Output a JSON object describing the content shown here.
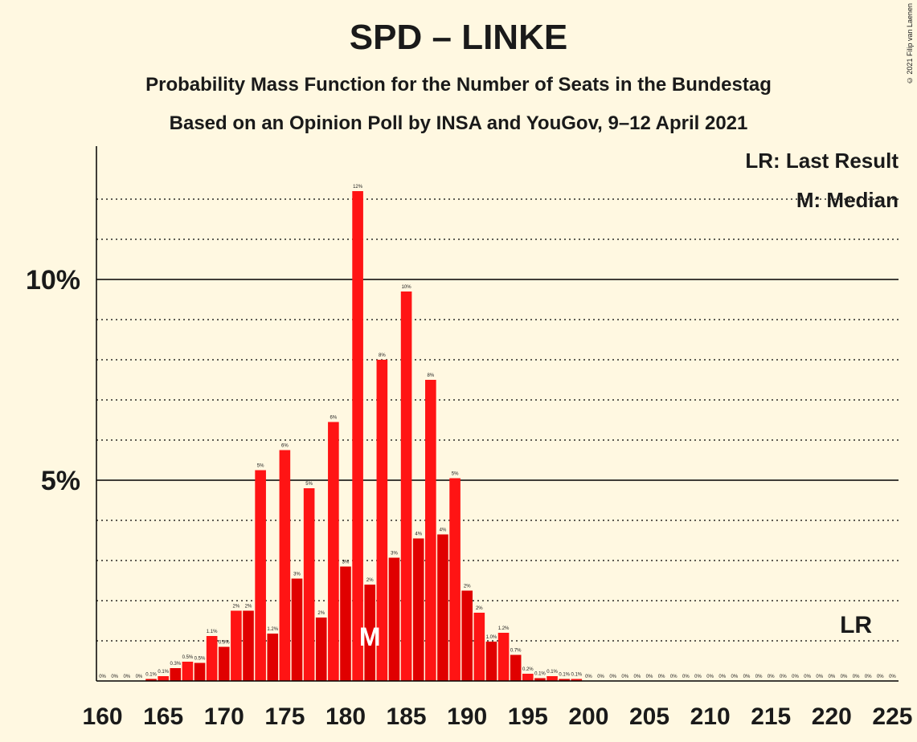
{
  "title": "SPD – LINKE",
  "subtitle1": "Probability Mass Function for the Number of Seats in the Bundestag",
  "subtitle2": "Based on an Opinion Poll by INSA and YouGov, 9–12 April 2021",
  "copyright": "© 2021 Filip van Laenen",
  "legend": {
    "lr": "LR: Last Result",
    "m": "M: Median"
  },
  "markers": {
    "median_label": "M",
    "median_seat": 182,
    "lr_label": "LR",
    "lr_seat": 222
  },
  "colors": {
    "background": "#FFF8E1",
    "bar_dark": "#E00000",
    "bar_light": "#FF1414",
    "text": "#1a1a1a"
  },
  "chart_data": {
    "type": "bar",
    "x": [
      160,
      161,
      162,
      163,
      164,
      165,
      166,
      167,
      168,
      169,
      170,
      171,
      172,
      173,
      174,
      175,
      176,
      177,
      178,
      179,
      180,
      181,
      182,
      183,
      184,
      185,
      186,
      187,
      188,
      189,
      190,
      191,
      192,
      193,
      194,
      195,
      196,
      197,
      198,
      199,
      200,
      201,
      202,
      203,
      204,
      205,
      206,
      207,
      208,
      209,
      210,
      211,
      212,
      213,
      214,
      215,
      216,
      217,
      218,
      219,
      220,
      221,
      222,
      223,
      224,
      225
    ],
    "values": [
      0,
      0,
      0,
      0,
      0.05,
      0.12,
      0.32,
      0.48,
      0.45,
      1.12,
      0.85,
      1.75,
      1.75,
      5.25,
      1.18,
      5.75,
      2.55,
      4.8,
      1.58,
      6.45,
      2.85,
      12.2,
      2.4,
      8.0,
      3.07,
      9.7,
      3.55,
      7.5,
      3.65,
      5.05,
      2.25,
      1.7,
      0.98,
      1.2,
      0.65,
      0.18,
      0.07,
      0.12,
      0.05,
      0.05,
      0,
      0,
      0,
      0,
      0,
      0,
      0,
      0,
      0,
      0,
      0,
      0,
      0,
      0,
      0,
      0,
      0,
      0,
      0,
      0,
      0,
      0,
      0,
      0,
      0,
      0
    ],
    "labels": [
      "0%",
      "0%",
      "0%",
      "0%",
      "0.1%",
      "0.1%",
      "0.3%",
      "0.5%",
      "0.5%",
      "1.1%",
      "0.9%",
      "2%",
      "2%",
      "5%",
      "1.2%",
      "6%",
      "3%",
      "5%",
      "2%",
      "6%",
      "3%",
      "12%",
      "2%",
      "8%",
      "3%",
      "10%",
      "4%",
      "8%",
      "4%",
      "5%",
      "2%",
      "2%",
      "1.0%",
      "1.2%",
      "0.7%",
      "0.2%",
      "0.1%",
      "0.1%",
      "0.1%",
      "0.1%",
      "0%",
      "0%",
      "0%",
      "0%",
      "0%",
      "0%",
      "0%",
      "0%",
      "0%",
      "0%",
      "0%",
      "0%",
      "0%",
      "0%",
      "0%",
      "0%",
      "0%",
      "0%",
      "0%",
      "0%",
      "0%",
      "0%",
      "0%",
      "0%",
      "0%",
      "0%"
    ],
    "xticks": [
      160,
      165,
      170,
      175,
      180,
      185,
      190,
      195,
      200,
      205,
      210,
      215,
      220,
      225
    ],
    "yticks": [
      {
        "value": 5,
        "label": "5%"
      },
      {
        "value": 10,
        "label": "10%"
      }
    ],
    "ylim": [
      0,
      13
    ],
    "gridlines": "dotted every 1%, solid at 5% and 10%"
  }
}
